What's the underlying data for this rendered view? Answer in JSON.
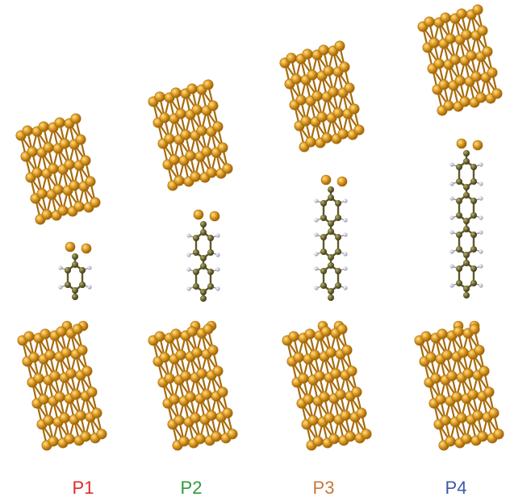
{
  "colors": {
    "gold": "#d9961f",
    "gold_dark": "#a86a0a",
    "gold_light": "#f4c25a",
    "carbon": "#5e5a2a",
    "carbon_light": "#9a9350",
    "hydrogen": "#e6e6ee",
    "hydrogen_edge": "#8a8aa0"
  },
  "panels": [
    {
      "label": "P1",
      "label_color": "#e02b2b",
      "rings": 1
    },
    {
      "label": "P2",
      "label_color": "#2d9a3a",
      "rings": 2
    },
    {
      "label": "P3",
      "label_color": "#c9773a",
      "rings": 3
    },
    {
      "label": "P4",
      "label_color": "#3d5aa8",
      "rings": 4
    }
  ]
}
